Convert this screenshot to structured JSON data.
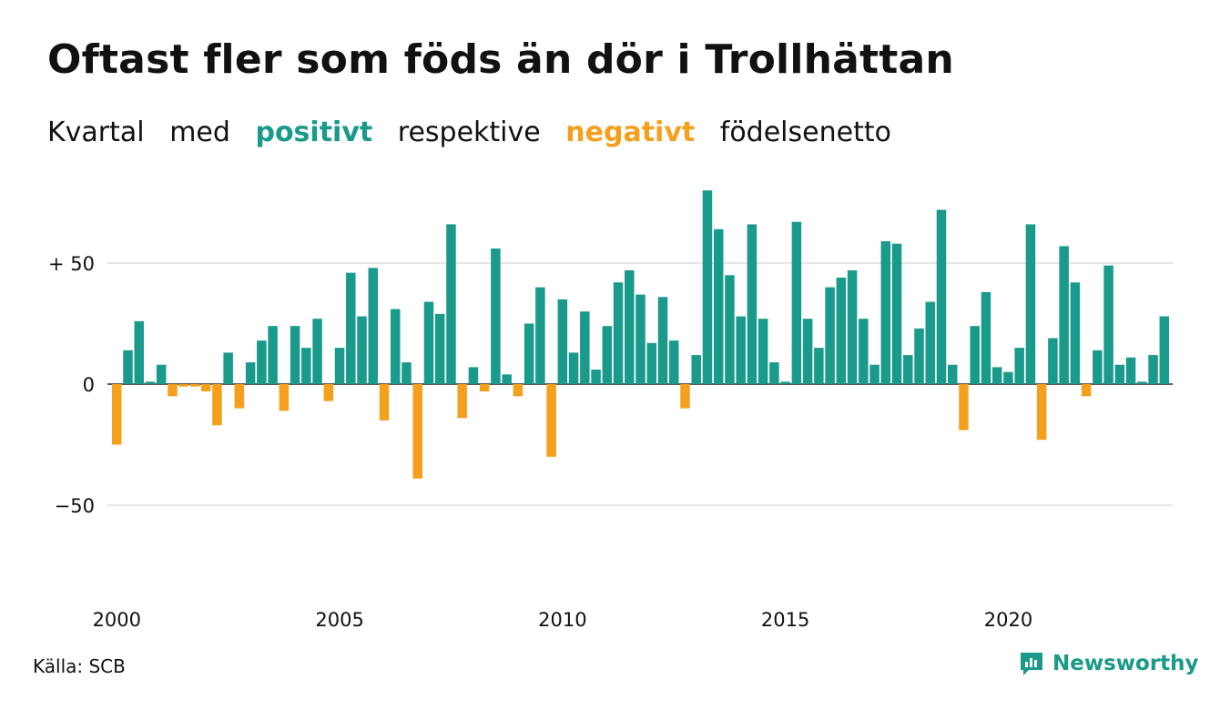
{
  "title": "Oftast fler som föds än dör i Trollhättan",
  "subtitle": {
    "w1": "Kvartal",
    "w2": "med",
    "positive": "positivt",
    "w4": "respektive",
    "negative": "negativt",
    "w6": "födelsenetto"
  },
  "source": "Källa: SCB",
  "brand": {
    "name": "Newsworthy",
    "icon": "newsworthy-logo-icon"
  },
  "colors": {
    "positive": "#1a9a8a",
    "negative": "#f5a01d",
    "grid": "#dddddd",
    "text": "#111111"
  },
  "chart_data": {
    "type": "bar",
    "x_start_year": 2000,
    "x_start_quarter": 1,
    "quarters_per_year": 4,
    "x_ticks": [
      "2000",
      "2005",
      "2010",
      "2015",
      "2020"
    ],
    "y_ticks": [
      50,
      0,
      -50
    ],
    "y_tick_labels": [
      "+ 50",
      "0",
      "−50"
    ],
    "ylim": [
      -80,
      80
    ],
    "grid": true,
    "values": [
      -25,
      14,
      26,
      1,
      8,
      -5,
      -1,
      -1,
      -3,
      -17,
      13,
      -10,
      9,
      18,
      24,
      -11,
      24,
      15,
      27,
      -7,
      15,
      46,
      28,
      48,
      -15,
      31,
      9,
      -39,
      34,
      29,
      66,
      -14,
      7,
      -3,
      56,
      4,
      -5,
      25,
      40,
      -30,
      35,
      13,
      30,
      6,
      24,
      42,
      47,
      37,
      17,
      36,
      18,
      -10,
      12,
      80,
      64,
      45,
      28,
      66,
      27,
      9,
      1,
      67,
      27,
      15,
      40,
      44,
      47,
      27,
      8,
      59,
      58,
      12,
      23,
      34,
      72,
      8,
      -19,
      24,
      38,
      7,
      5,
      15,
      66,
      -23,
      19,
      57,
      42,
      -5,
      14,
      49,
      8,
      11,
      1,
      12,
      28
    ]
  }
}
